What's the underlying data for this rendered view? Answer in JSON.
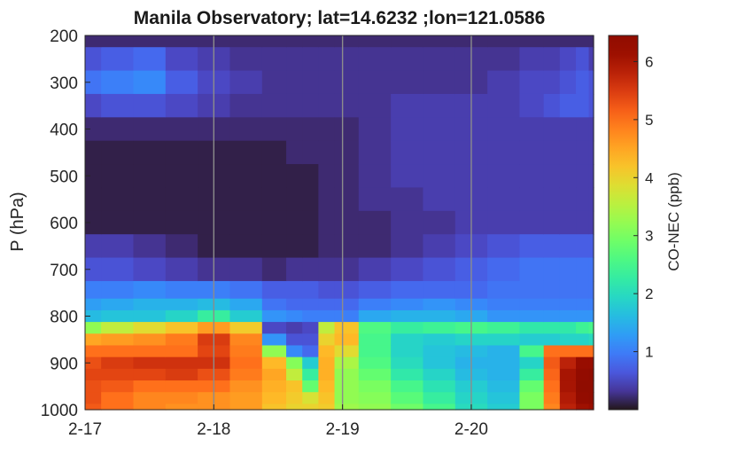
{
  "chart_data": {
    "type": "heatmap",
    "title": "Manila Observatory; lat=14.6232 ;lon=121.0586",
    "ylabel": "P (hPa)",
    "xlabel": "",
    "colorbar_label": "CO-NEC (ppb)",
    "colormap": "turbo",
    "xlim": [
      0,
      3.95
    ],
    "ylim": [
      200,
      1000
    ],
    "y_reversed": true,
    "color_range": [
      0,
      6.45
    ],
    "x_tick_labels": [
      "2-17",
      "2-18",
      "2-19",
      "2-20"
    ],
    "x_tick_values": [
      0,
      1,
      2,
      3
    ],
    "y_tick_values": [
      200,
      300,
      400,
      500,
      600,
      700,
      800,
      900,
      1000
    ],
    "colorbar_ticks": [
      1,
      2,
      3,
      4,
      5,
      6
    ],
    "vertical_gridlines_at": [
      1,
      2,
      3
    ],
    "pressure_levels": [
      200,
      250,
      300,
      350,
      400,
      450,
      500,
      550,
      600,
      650,
      700,
      750,
      775,
      800,
      825,
      850,
      875,
      900,
      925,
      950,
      975,
      1000
    ],
    "profile_times": [
      0,
      0.25,
      0.5,
      0.75,
      1,
      1.25,
      1.5,
      1.625,
      1.75,
      1.875,
      2,
      2.25,
      2.5,
      2.75,
      3,
      3.25,
      3.5,
      3.625,
      3.75,
      3.875,
      3.95
    ],
    "profiles": [
      [
        0.2,
        0.6,
        0.9,
        0.5,
        0.2,
        0.1,
        0.1,
        0.1,
        0.1,
        0.4,
        0.6,
        1.0,
        1.3,
        1.6,
        3.2,
        4.5,
        5.0,
        5.3,
        5.4,
        5.3,
        5.3,
        5.2
      ],
      [
        0.2,
        0.7,
        1.0,
        0.6,
        0.2,
        0.1,
        0.1,
        0.1,
        0.1,
        0.4,
        0.6,
        1.0,
        1.4,
        1.7,
        3.6,
        4.6,
        5.0,
        5.5,
        5.4,
        5.2,
        5.0,
        5.0
      ],
      [
        0.2,
        0.8,
        1.1,
        0.6,
        0.2,
        0.1,
        0.1,
        0.1,
        0.1,
        0.3,
        0.5,
        1.1,
        1.5,
        1.7,
        3.9,
        4.7,
        5.0,
        5.6,
        5.4,
        5.0,
        4.8,
        4.8
      ],
      [
        0.2,
        0.5,
        0.7,
        0.5,
        0.2,
        0.1,
        0.1,
        0.1,
        0.1,
        0.2,
        0.4,
        1.0,
        1.5,
        1.9,
        4.2,
        4.9,
        5.0,
        5.6,
        5.5,
        5.0,
        4.8,
        4.7
      ],
      [
        0.2,
        0.4,
        0.5,
        0.4,
        0.2,
        0.1,
        0.1,
        0.1,
        0.1,
        0.1,
        0.3,
        1.0,
        1.6,
        2.3,
        4.6,
        5.5,
        5.4,
        5.6,
        5.3,
        5.0,
        4.7,
        4.7
      ],
      [
        0.2,
        0.3,
        0.4,
        0.3,
        0.2,
        0.1,
        0.1,
        0.1,
        0.1,
        0.1,
        0.3,
        0.9,
        1.4,
        1.8,
        4.1,
        4.8,
        4.9,
        5.0,
        4.9,
        4.7,
        4.6,
        4.6
      ],
      [
        0.2,
        0.3,
        0.3,
        0.3,
        0.2,
        0.1,
        0.1,
        0.1,
        0.1,
        0.1,
        0.2,
        0.7,
        0.9,
        1.2,
        0.5,
        1.2,
        3.2,
        4.3,
        4.5,
        4.4,
        4.3,
        4.2
      ],
      [
        0.2,
        0.3,
        0.3,
        0.3,
        0.2,
        0.2,
        0.1,
        0.1,
        0.1,
        0.1,
        0.3,
        0.7,
        0.8,
        1.1,
        0.4,
        0.6,
        1.1,
        3.1,
        3.6,
        4.2,
        4.1,
        4.0
      ],
      [
        0.2,
        0.3,
        0.3,
        0.3,
        0.2,
        0.2,
        0.1,
        0.1,
        0.1,
        0.1,
        0.3,
        0.7,
        0.8,
        1.0,
        0.5,
        0.6,
        0.8,
        1.8,
        2.3,
        2.8,
        3.8,
        4.0
      ],
      [
        0.2,
        0.3,
        0.3,
        0.3,
        0.2,
        0.2,
        0.2,
        0.2,
        0.2,
        0.2,
        0.3,
        0.6,
        0.8,
        1.0,
        3.6,
        4.0,
        4.3,
        4.4,
        4.4,
        4.3,
        4.2,
        4.1
      ],
      [
        0.2,
        0.3,
        0.3,
        0.3,
        0.2,
        0.2,
        0.2,
        0.2,
        0.2,
        0.2,
        0.3,
        0.6,
        0.8,
        1.0,
        4.2,
        4.3,
        3.9,
        3.4,
        3.2,
        3.2,
        3.2,
        3.3
      ],
      [
        0.2,
        0.3,
        0.3,
        0.3,
        0.3,
        0.3,
        0.3,
        0.3,
        0.2,
        0.2,
        0.4,
        0.7,
        1.0,
        1.4,
        2.6,
        2.5,
        2.5,
        2.6,
        2.8,
        3.0,
        3.1,
        3.2
      ],
      [
        0.2,
        0.3,
        0.3,
        0.4,
        0.4,
        0.4,
        0.4,
        0.3,
        0.3,
        0.3,
        0.5,
        0.8,
        1.1,
        1.5,
        2.3,
        1.9,
        1.9,
        2.0,
        2.2,
        2.5,
        2.7,
        2.9
      ],
      [
        0.2,
        0.3,
        0.3,
        0.4,
        0.4,
        0.4,
        0.4,
        0.4,
        0.3,
        0.4,
        0.6,
        0.8,
        1.2,
        1.5,
        2.4,
        1.8,
        1.7,
        1.7,
        1.9,
        2.1,
        2.3,
        2.5
      ],
      [
        0.2,
        0.3,
        0.3,
        0.4,
        0.4,
        0.4,
        0.4,
        0.4,
        0.4,
        0.5,
        0.7,
        0.8,
        1.1,
        1.4,
        2.5,
        1.9,
        1.6,
        1.5,
        1.6,
        1.8,
        1.9,
        2.0
      ],
      [
        0.2,
        0.3,
        0.4,
        0.4,
        0.4,
        0.4,
        0.4,
        0.4,
        0.4,
        0.6,
        0.8,
        0.9,
        1.0,
        1.2,
        2.4,
        1.9,
        1.5,
        1.5,
        1.5,
        1.6,
        1.7,
        1.8
      ],
      [
        0.2,
        0.4,
        0.5,
        0.5,
        0.4,
        0.4,
        0.4,
        0.4,
        0.4,
        0.7,
        0.9,
        0.9,
        1.0,
        1.2,
        2.2,
        1.8,
        2.5,
        1.9,
        2.3,
        2.8,
        3.0,
        3.0
      ],
      [
        0.2,
        0.4,
        0.5,
        0.6,
        0.4,
        0.4,
        0.4,
        0.4,
        0.4,
        0.7,
        0.9,
        0.9,
        1.0,
        1.2,
        2.2,
        1.8,
        5.0,
        5.2,
        5.1,
        5.0,
        4.9,
        4.8
      ],
      [
        0.2,
        0.5,
        0.6,
        0.7,
        0.4,
        0.4,
        0.4,
        0.4,
        0.4,
        0.7,
        0.9,
        0.9,
        1.0,
        1.2,
        2.2,
        1.9,
        5.0,
        5.8,
        6.0,
        6.0,
        5.9,
        5.8
      ],
      [
        0.2,
        0.6,
        0.7,
        0.7,
        0.4,
        0.4,
        0.4,
        0.4,
        0.4,
        0.7,
        0.9,
        0.9,
        1.0,
        1.2,
        2.4,
        1.9,
        5.0,
        6.2,
        6.3,
        6.4,
        6.3,
        6.1
      ],
      [
        0.2,
        0.4,
        0.6,
        0.6,
        0.4,
        0.4,
        0.4,
        0.4,
        0.4,
        0.7,
        0.9,
        0.9,
        1.0,
        1.2,
        2.5,
        2.0,
        5.0,
        6.2,
        6.4,
        6.45,
        6.4,
        6.2
      ]
    ]
  }
}
